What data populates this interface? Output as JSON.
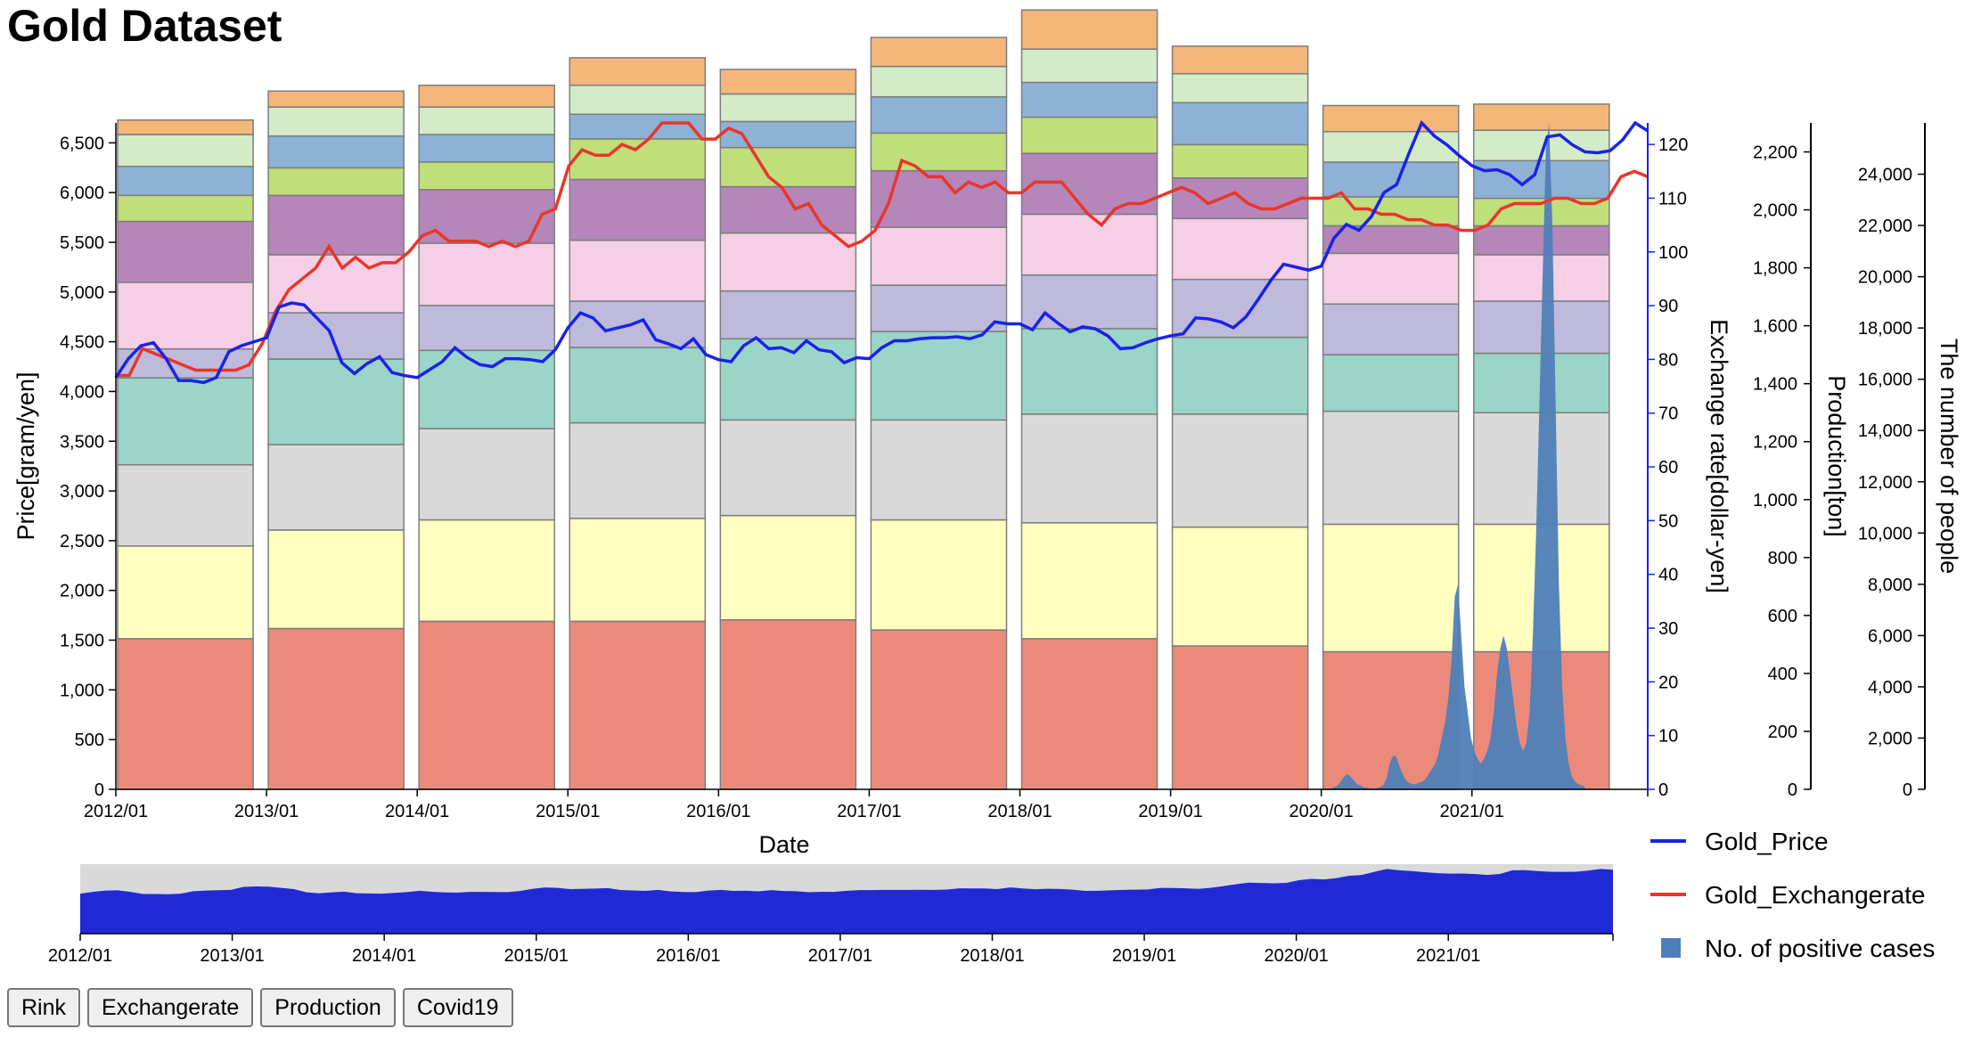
{
  "page": {
    "title": "Gold Dataset"
  },
  "buttons": [
    "Rink",
    "Exchangerate",
    "Production",
    "Covid19"
  ],
  "legend": {
    "items": [
      {
        "label": "Gold_Price",
        "color": "#1a22e8",
        "kind": "line"
      },
      {
        "label": "Gold_Exchangerate",
        "color": "#e8362a",
        "kind": "line"
      },
      {
        "label": "No. of positive cases",
        "color": "#4f7fb8",
        "kind": "square"
      }
    ]
  },
  "chart_data": {
    "type": "bar",
    "title": "Gold Dataset",
    "xlabel": "Date",
    "x_ticks": [
      "2012/01",
      "2013/01",
      "2014/01",
      "2015/01",
      "2016/01",
      "2017/01",
      "2018/01",
      "2019/01",
      "2020/01",
      "2021/01"
    ],
    "axes": {
      "price": {
        "label": "Price[gram/yen]",
        "min": 0,
        "max": 6700,
        "ticks": [
          "0",
          "500",
          "1,000",
          "1,500",
          "2,000",
          "2,500",
          "3,000",
          "3,500",
          "4,000",
          "4,500",
          "5,000",
          "5,500",
          "6,000",
          "6,500"
        ],
        "tick_values": [
          0,
          500,
          1000,
          1500,
          2000,
          2500,
          3000,
          3500,
          4000,
          4500,
          5000,
          5500,
          6000,
          6500
        ]
      },
      "exchange": {
        "label": "Exchange rate[dollar-yen]",
        "min": 0,
        "max": 124,
        "ticks": [
          "0",
          "10",
          "20",
          "30",
          "40",
          "50",
          "60",
          "70",
          "80",
          "90",
          "100",
          "110",
          "120"
        ],
        "tick_values": [
          0,
          10,
          20,
          30,
          40,
          50,
          60,
          70,
          80,
          90,
          100,
          110,
          120
        ]
      },
      "production": {
        "label": "Production[ton]",
        "min": 0,
        "max": 2300,
        "ticks": [
          "0",
          "200",
          "400",
          "600",
          "800",
          "1,000",
          "1,200",
          "1,400",
          "1,600",
          "1,800",
          "2,000",
          "2,200"
        ],
        "tick_values": [
          0,
          200,
          400,
          600,
          800,
          1000,
          1200,
          1400,
          1600,
          1800,
          2000,
          2200
        ]
      },
      "people": {
        "label": "The number of people",
        "min": 0,
        "max": 26000,
        "ticks": [
          "0",
          "2,000",
          "4,000",
          "6,000",
          "8,000",
          "10,000",
          "12,000",
          "14,000",
          "16,000",
          "18,000",
          "20,000",
          "22,000",
          "24,000"
        ],
        "tick_values": [
          0,
          2000,
          4000,
          6000,
          8000,
          10000,
          12000,
          14000,
          16000,
          18000,
          20000,
          22000,
          24000
        ]
      }
    },
    "production_segment_colors": [
      "#eb8a7a",
      "#ffffbf",
      "#d9d9d9",
      "#9ad5c8",
      "#bdbadb",
      "#f5cfe6",
      "#b486b9",
      "#c0de7a",
      "#8db2d5",
      "#d4ebc8",
      "#f5b67a"
    ],
    "production_years": [
      "2012",
      "2013",
      "2014",
      "2015",
      "2016",
      "2017",
      "2018",
      "2019",
      "2020",
      "2021"
    ],
    "production_stacks": [
      [
        520,
        320,
        280,
        300,
        100,
        230,
        210,
        90,
        100,
        110,
        50
      ],
      [
        555,
        340,
        295,
        295,
        160,
        200,
        205,
        95,
        110,
        100,
        55
      ],
      [
        580,
        350,
        315,
        270,
        155,
        215,
        185,
        95,
        95,
        95,
        75
      ],
      [
        580,
        355,
        330,
        260,
        160,
        210,
        210,
        140,
        85,
        100,
        95
      ],
      [
        585,
        360,
        330,
        280,
        165,
        200,
        160,
        135,
        90,
        95,
        85
      ],
      [
        550,
        380,
        345,
        305,
        160,
        200,
        195,
        130,
        125,
        105,
        100
      ],
      [
        520,
        400,
        375,
        295,
        185,
        210,
        210,
        125,
        120,
        115,
        135
      ],
      [
        495,
        410,
        390,
        265,
        200,
        210,
        140,
        115,
        145,
        100,
        95
      ],
      [
        475,
        440,
        390,
        195,
        175,
        175,
        95,
        100,
        120,
        105,
        90
      ],
      [
        475,
        440,
        385,
        205,
        180,
        160,
        100,
        95,
        130,
        105,
        90
      ]
    ],
    "series": [
      {
        "name": "Gold_Price",
        "axis": "price",
        "start": "2012/01",
        "values": [
          4140,
          4330,
          4460,
          4490,
          4330,
          4110,
          4110,
          4090,
          4140,
          4400,
          4460,
          4500,
          4540,
          4850,
          4890,
          4870,
          4740,
          4610,
          4290,
          4180,
          4280,
          4350,
          4190,
          4160,
          4140,
          4220,
          4300,
          4440,
          4340,
          4270,
          4250,
          4330,
          4330,
          4320,
          4300,
          4420,
          4640,
          4790,
          4740,
          4610,
          4640,
          4670,
          4720,
          4520,
          4480,
          4430,
          4530,
          4370,
          4320,
          4300,
          4460,
          4540,
          4430,
          4440,
          4390,
          4510,
          4420,
          4400,
          4290,
          4340,
          4330,
          4440,
          4510,
          4510,
          4530,
          4540,
          4540,
          4550,
          4530,
          4570,
          4700,
          4680,
          4680,
          4620,
          4790,
          4690,
          4600,
          4650,
          4630,
          4560,
          4430,
          4440,
          4490,
          4530,
          4560,
          4580,
          4740,
          4730,
          4700,
          4640,
          4750,
          4930,
          5120,
          5280,
          5250,
          5220,
          5260,
          5540,
          5680,
          5620,
          5760,
          6000,
          6080,
          6400,
          6700,
          6570,
          6480,
          6370,
          6270,
          6220,
          6230,
          6180,
          6080,
          6180,
          6560,
          6580,
          6480,
          6410,
          6400,
          6420,
          6530,
          6700,
          6620
        ]
      },
      {
        "name": "Gold_Exchangerate",
        "axis": "exchange",
        "start": "2012/01",
        "values": [
          77,
          77,
          82,
          81,
          80,
          79,
          78,
          78,
          78,
          78,
          79,
          83,
          89,
          93,
          95,
          97,
          101,
          97,
          99,
          97,
          98,
          98,
          100,
          103,
          104,
          102,
          102,
          102,
          101,
          102,
          101,
          102,
          107,
          108,
          116,
          119,
          118,
          118,
          120,
          119,
          121,
          124,
          124,
          124,
          121,
          121,
          123,
          122,
          118,
          114,
          112,
          108,
          109,
          105,
          103,
          101,
          102,
          104,
          109,
          117,
          116,
          114,
          114,
          111,
          113,
          112,
          113,
          111,
          111,
          113,
          113,
          113,
          110,
          107,
          105,
          108,
          109,
          109,
          110,
          111,
          112,
          111,
          109,
          110,
          111,
          109,
          108,
          108,
          109,
          110,
          110,
          110,
          111,
          108,
          108,
          107,
          107,
          106,
          106,
          105,
          105,
          104,
          104,
          105,
          108,
          109,
          109,
          109,
          110,
          110,
          109,
          109,
          110,
          114,
          115,
          114
        ]
      },
      {
        "name": "No. of positive cases",
        "axis": "people",
        "start": "2020/01",
        "kind": "area",
        "values": [
          0,
          10,
          20,
          40,
          80,
          150,
          300,
          500,
          600,
          500,
          350,
          200,
          150,
          80,
          60,
          40,
          30,
          40,
          80,
          150,
          400,
          1000,
          1300,
          1300,
          900,
          600,
          350,
          250,
          200,
          200,
          250,
          300,
          400,
          600,
          800,
          1000,
          1400,
          2000,
          2600,
          3500,
          5000,
          7500,
          8000,
          6000,
          4000,
          3000,
          2000,
          1500,
          1200,
          1000,
          1200,
          1500,
          2000,
          3000,
          4500,
          5500,
          6000,
          5500,
          4500,
          3500,
          2500,
          1800,
          1500,
          1800,
          3000,
          6000,
          10000,
          15000,
          20000,
          25000,
          26000,
          22000,
          15000,
          8000,
          4000,
          2000,
          1000,
          500,
          300,
          200,
          150,
          100
        ]
      }
    ],
    "overview": {
      "type": "area",
      "x_ticks": [
        "2012/01",
        "2013/01",
        "2014/01",
        "2015/01",
        "2016/01",
        "2017/01",
        "2018/01",
        "2019/01",
        "2020/01",
        "2021/01"
      ],
      "values": [
        4140,
        4330,
        4460,
        4490,
        4330,
        4110,
        4110,
        4090,
        4140,
        4400,
        4460,
        4500,
        4540,
        4850,
        4890,
        4870,
        4740,
        4610,
        4290,
        4180,
        4280,
        4350,
        4190,
        4160,
        4140,
        4220,
        4300,
        4440,
        4340,
        4270,
        4250,
        4330,
        4330,
        4320,
        4300,
        4420,
        4640,
        4790,
        4740,
        4610,
        4640,
        4670,
        4720,
        4520,
        4480,
        4430,
        4530,
        4370,
        4320,
        4300,
        4460,
        4540,
        4430,
        4440,
        4390,
        4510,
        4420,
        4400,
        4290,
        4340,
        4330,
        4440,
        4510,
        4510,
        4530,
        4540,
        4540,
        4550,
        4530,
        4570,
        4700,
        4680,
        4680,
        4620,
        4790,
        4690,
        4600,
        4650,
        4630,
        4560,
        4430,
        4440,
        4490,
        4530,
        4560,
        4580,
        4740,
        4730,
        4700,
        4640,
        4750,
        4930,
        5120,
        5280,
        5250,
        5220,
        5260,
        5540,
        5680,
        5620,
        5760,
        6000,
        6080,
        6400,
        6700,
        6570,
        6480,
        6370,
        6270,
        6220,
        6230,
        6180,
        6080,
        6180,
        6560,
        6580,
        6480,
        6410,
        6400,
        6420,
        6530,
        6700,
        6620
      ],
      "max": 7200
    }
  }
}
